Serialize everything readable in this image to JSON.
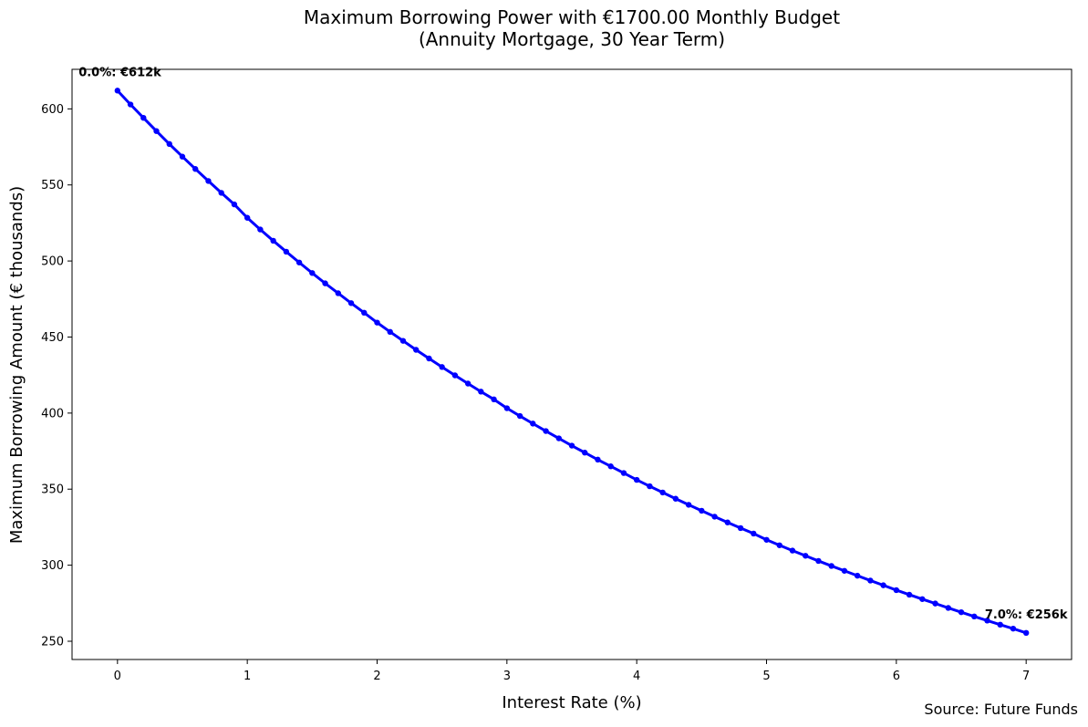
{
  "chart_data": {
    "type": "line",
    "title_line1": "Maximum Borrowing Power with €1700.00 Monthly Budget",
    "title_line2": "(Annuity Mortgage, 30 Year Term)",
    "xlabel": "Interest Rate (%)",
    "ylabel": "Maximum Borrowing Amount (€ thousands)",
    "source": "Source: Future Funds",
    "xlim": [
      -0.35,
      7.35
    ],
    "ylim": [
      238,
      626
    ],
    "x_ticks": [
      0,
      1,
      2,
      3,
      4,
      5,
      6,
      7
    ],
    "y_ticks": [
      250,
      300,
      350,
      400,
      450,
      500,
      550,
      600
    ],
    "grid": false,
    "line_color": "#0000ff",
    "series": [
      {
        "x": [
          0.0,
          0.1,
          0.2,
          0.3,
          0.4,
          0.5,
          0.6,
          0.7,
          0.8,
          0.9,
          1.0,
          1.1,
          1.2,
          1.3,
          1.4,
          1.5,
          1.6,
          1.7,
          1.8,
          1.9,
          2.0,
          2.1,
          2.2,
          2.3,
          2.4,
          2.5,
          2.6,
          2.7,
          2.8,
          2.9,
          3.0,
          3.1,
          3.2,
          3.3,
          3.4,
          3.5,
          3.6,
          3.7,
          3.8,
          3.9,
          4.0,
          4.1,
          4.2,
          4.3,
          4.4,
          4.5,
          4.6,
          4.7,
          4.8,
          4.9,
          5.0,
          5.1,
          5.2,
          5.3,
          5.4,
          5.5,
          5.6,
          5.7,
          5.8,
          5.9,
          6.0,
          6.1,
          6.2,
          6.3,
          6.4,
          6.5,
          6.6,
          6.7,
          6.8,
          6.9,
          7.0
        ],
        "values": [
          612.0,
          602.9,
          594.1,
          585.4,
          576.9,
          568.6,
          560.5,
          552.6,
          544.8,
          537.2,
          528.4,
          520.7,
          513.3,
          506.1,
          499.0,
          492.1,
          485.3,
          478.8,
          472.3,
          466.0,
          459.5,
          453.4,
          447.5,
          441.6,
          435.9,
          430.3,
          424.8,
          419.4,
          414.1,
          409.0,
          403.2,
          398.1,
          393.1,
          388.2,
          383.4,
          378.6,
          374.0,
          369.4,
          365.0,
          360.6,
          356.1,
          351.9,
          347.8,
          343.7,
          339.7,
          335.8,
          331.9,
          328.1,
          324.4,
          320.8,
          316.7,
          313.1,
          309.6,
          306.2,
          302.8,
          299.5,
          296.3,
          293.1,
          289.9,
          286.8,
          283.6,
          280.6,
          277.7,
          274.8,
          271.9,
          269.1,
          266.3,
          263.6,
          260.9,
          258.3,
          255.5
        ]
      }
    ],
    "annotations": [
      {
        "text": "0.0%: €612k",
        "x": 0.0,
        "y": 612.0,
        "anchor": "end"
      },
      {
        "text": "7.0%: €256k",
        "x": 7.0,
        "y": 255.5,
        "anchor": "middle"
      }
    ]
  }
}
